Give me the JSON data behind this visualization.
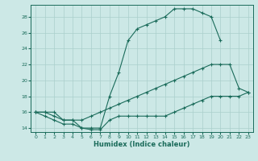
{
  "xlabel": "Humidex (Indice chaleur)",
  "xlim": [
    -0.5,
    23.5
  ],
  "ylim": [
    13.5,
    29.5
  ],
  "xticks": [
    0,
    1,
    2,
    3,
    4,
    5,
    6,
    7,
    8,
    9,
    10,
    11,
    12,
    13,
    14,
    15,
    16,
    17,
    18,
    19,
    20,
    21,
    22,
    23
  ],
  "yticks": [
    14,
    16,
    18,
    20,
    22,
    24,
    26,
    28
  ],
  "bg_color": "#cce8e6",
  "line_color": "#1a6b5a",
  "grid_color": "#aacfcc",
  "line1_x": [
    0,
    1,
    2,
    3,
    4,
    5,
    6,
    7,
    8,
    9,
    10,
    11,
    12,
    13,
    14,
    15,
    16,
    17,
    18,
    19,
    20
  ],
  "line1_y": [
    16,
    16,
    16,
    15,
    15,
    14,
    14,
    14,
    18,
    21,
    25,
    26.5,
    27,
    27.5,
    28,
    29,
    29,
    29,
    28.5,
    28,
    25
  ],
  "line2_x": [
    0,
    1,
    2,
    3,
    4,
    5,
    6,
    7,
    8,
    9,
    10,
    11,
    12,
    13,
    14,
    15,
    16,
    17,
    18,
    19,
    20,
    21,
    22,
    23
  ],
  "line2_y": [
    16,
    16,
    15.5,
    15,
    15,
    15,
    15.5,
    16,
    16.5,
    17,
    17.5,
    18,
    18.5,
    19,
    19.5,
    20,
    20.5,
    21,
    21.5,
    22,
    22,
    22,
    19,
    18.5
  ],
  "line3_x": [
    0,
    1,
    2,
    3,
    4,
    5,
    6,
    7,
    8,
    9,
    10,
    11,
    12,
    13,
    14,
    15,
    16,
    17,
    18,
    19,
    20,
    21,
    22,
    23
  ],
  "line3_y": [
    16,
    15.5,
    15,
    14.5,
    14.5,
    14,
    13.8,
    13.8,
    15,
    15.5,
    15.5,
    15.5,
    15.5,
    15.5,
    15.5,
    16,
    16.5,
    17,
    17.5,
    18,
    18,
    18,
    18,
    18.5
  ]
}
